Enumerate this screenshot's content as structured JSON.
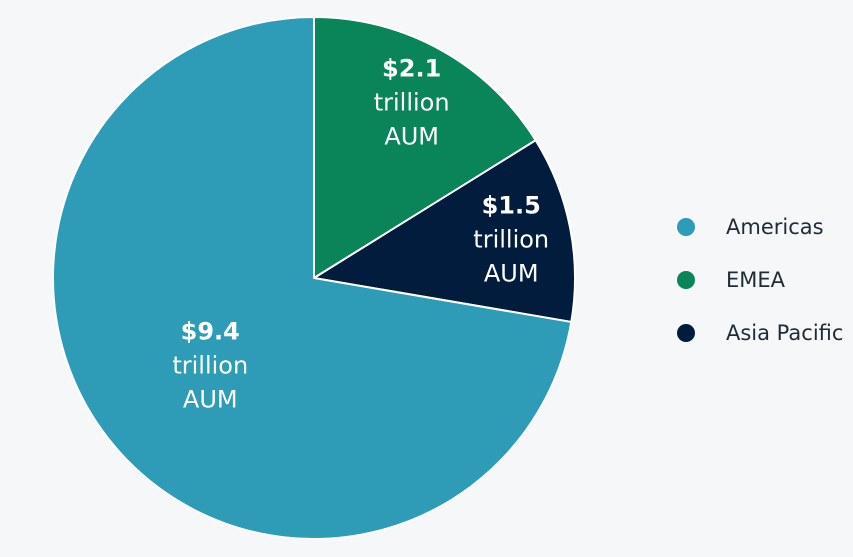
{
  "chart_data": {
    "type": "pie",
    "title": "",
    "unit": "trillion AUM",
    "start_angle_deg": 0,
    "direction": "clockwise",
    "legend_position": "right",
    "slices": [
      {
        "name": "EMEA",
        "value": 2.1,
        "color": "#0a8459",
        "label_value": "$2.1",
        "label_line2": "trillion",
        "label_line3": "AUM"
      },
      {
        "name": "Asia Pacific",
        "value": 1.5,
        "color": "#021c3e",
        "label_value": "$1.5",
        "label_line2": "trillion",
        "label_line3": "AUM"
      },
      {
        "name": "Americas",
        "value": 9.4,
        "color": "#2e9cb7",
        "label_value": "$9.4",
        "label_line2": "trillion",
        "label_line3": "AUM"
      }
    ]
  },
  "legend": {
    "items": [
      {
        "label": "Americas",
        "color": "#2e9cb7"
      },
      {
        "label": "EMEA",
        "color": "#0a8459"
      },
      {
        "label": "Asia Pacific",
        "color": "#021c3e"
      }
    ]
  }
}
